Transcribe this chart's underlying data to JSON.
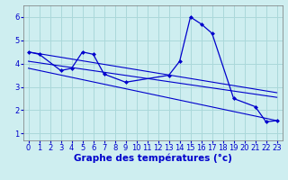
{
  "background_color": "#ceeef0",
  "grid_color": "#aad8da",
  "line_color": "#0000cc",
  "xlabel": "Graphe des températures (°c)",
  "xlabel_fontsize": 7.5,
  "tick_fontsize": 6,
  "xlim": [
    -0.5,
    23.5
  ],
  "ylim": [
    0.7,
    6.5
  ],
  "yticks": [
    1,
    2,
    3,
    4,
    5,
    6
  ],
  "xticks": [
    0,
    1,
    2,
    3,
    4,
    5,
    6,
    7,
    8,
    9,
    10,
    11,
    12,
    13,
    14,
    15,
    16,
    17,
    18,
    19,
    20,
    21,
    22,
    23
  ],
  "main_x": [
    0,
    1,
    3,
    4,
    5,
    6,
    7,
    9,
    13,
    14,
    15,
    16,
    17,
    19,
    21,
    22,
    23
  ],
  "main_y": [
    4.5,
    4.4,
    3.7,
    3.8,
    4.5,
    4.4,
    3.55,
    3.2,
    3.5,
    4.1,
    6.0,
    5.7,
    5.3,
    2.5,
    2.15,
    1.5,
    1.55
  ],
  "line1_x": [
    0,
    23
  ],
  "line1_y": [
    4.5,
    2.75
  ],
  "line2_x": [
    0,
    23
  ],
  "line2_y": [
    4.1,
    2.55
  ],
  "line3_x": [
    0,
    23
  ],
  "line3_y": [
    3.8,
    1.55
  ]
}
